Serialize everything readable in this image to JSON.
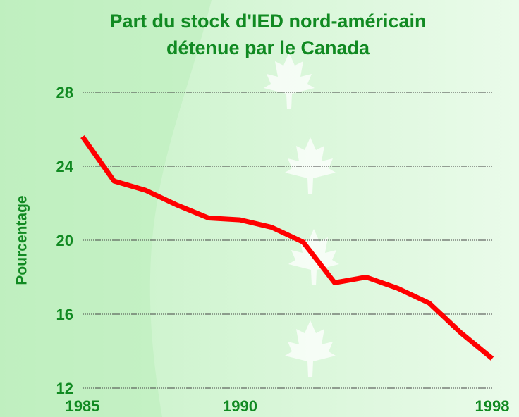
{
  "chart_data": {
    "type": "line",
    "title": [
      "Part du stock d'IED nord-américain",
      "détenue par le Canada"
    ],
    "y_label": "Pourcentage",
    "x": [
      1985,
      1986,
      1987,
      1988,
      1989,
      1990,
      1991,
      1992,
      1993,
      1994,
      1995,
      1996,
      1997,
      1998
    ],
    "series": [
      {
        "color": "#ff0000",
        "values": [
          25.6,
          23.2,
          22.7,
          21.9,
          21.2,
          21.1,
          20.7,
          19.9,
          17.7,
          18.0,
          17.4,
          16.6,
          15.0,
          13.6
        ]
      }
    ],
    "xlim": [
      1985,
      1998
    ],
    "xticks": [
      1985,
      1990,
      1998
    ],
    "ylim": [
      12,
      28
    ],
    "yticks": [
      12,
      16,
      20,
      24,
      28
    ],
    "grid": true
  }
}
